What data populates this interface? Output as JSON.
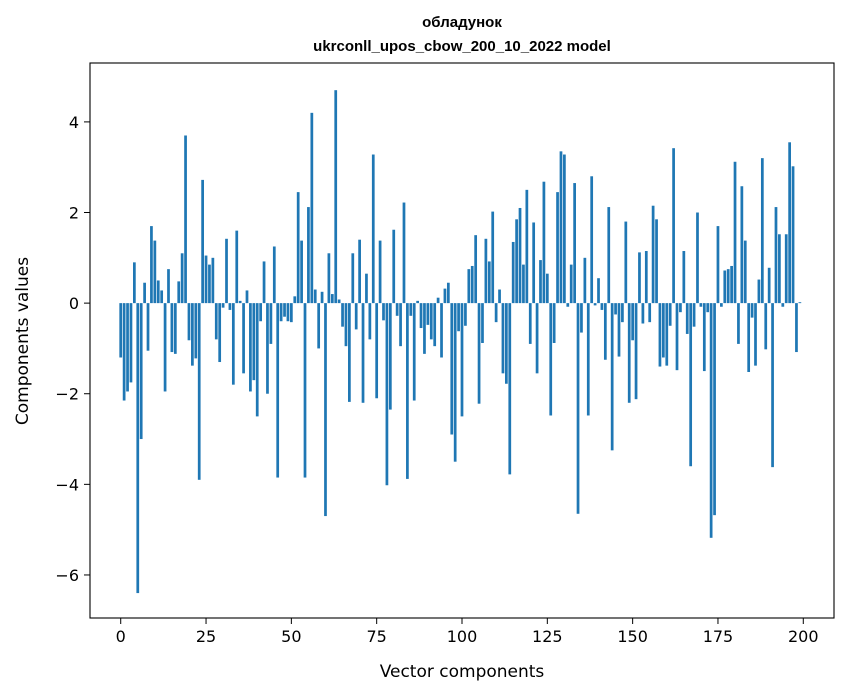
{
  "chart_data": {
    "type": "bar",
    "title": "обладунок",
    "subtitle": "ukrconll_upos_cbow_200_10_2022 model",
    "xlabel": "Vector components",
    "ylabel": "Components values",
    "xlim": [
      -9,
      209
    ],
    "ylim": [
      -6.95,
      5.3
    ],
    "xticks": [
      0,
      25,
      50,
      75,
      100,
      125,
      150,
      175,
      200
    ],
    "xtick_labels": [
      "0",
      "25",
      "50",
      "75",
      "100",
      "125",
      "150",
      "175",
      "200"
    ],
    "yticks": [
      -6,
      -4,
      -2,
      0,
      2,
      4
    ],
    "ytick_labels": [
      "−6",
      "−4",
      "−2",
      "0",
      "2",
      "4"
    ],
    "bar_color": "#1f77b4",
    "grid": false,
    "x": [
      0,
      1,
      2,
      3,
      4,
      5,
      6,
      7,
      8,
      9,
      10,
      11,
      12,
      13,
      14,
      15,
      16,
      17,
      18,
      19,
      20,
      21,
      22,
      23,
      24,
      25,
      26,
      27,
      28,
      29,
      30,
      31,
      32,
      33,
      34,
      35,
      36,
      37,
      38,
      39,
      40,
      41,
      42,
      43,
      44,
      45,
      46,
      47,
      48,
      49,
      50,
      51,
      52,
      53,
      54,
      55,
      56,
      57,
      58,
      59,
      60,
      61,
      62,
      63,
      64,
      65,
      66,
      67,
      68,
      69,
      70,
      71,
      72,
      73,
      74,
      75,
      76,
      77,
      78,
      79,
      80,
      81,
      82,
      83,
      84,
      85,
      86,
      87,
      88,
      89,
      90,
      91,
      92,
      93,
      94,
      95,
      96,
      97,
      98,
      99,
      100,
      101,
      102,
      103,
      104,
      105,
      106,
      107,
      108,
      109,
      110,
      111,
      112,
      113,
      114,
      115,
      116,
      117,
      118,
      119,
      120,
      121,
      122,
      123,
      124,
      125,
      126,
      127,
      128,
      129,
      130,
      131,
      132,
      133,
      134,
      135,
      136,
      137,
      138,
      139,
      140,
      141,
      142,
      143,
      144,
      145,
      146,
      147,
      148,
      149,
      150,
      151,
      152,
      153,
      154,
      155,
      156,
      157,
      158,
      159,
      160,
      161,
      162,
      163,
      164,
      165,
      166,
      167,
      168,
      169,
      170,
      171,
      172,
      173,
      174,
      175,
      176,
      177,
      178,
      179,
      180,
      181,
      182,
      183,
      184,
      185,
      186,
      187,
      188,
      189,
      190,
      191,
      192,
      193,
      194,
      195,
      196,
      197,
      198,
      199
    ],
    "values": [
      -1.2,
      -2.15,
      -1.95,
      -1.75,
      0.9,
      -6.4,
      -3.0,
      0.45,
      -1.05,
      1.7,
      1.38,
      0.5,
      0.28,
      -1.95,
      0.75,
      -1.08,
      -1.12,
      0.48,
      1.1,
      3.7,
      -0.82,
      -1.38,
      -1.22,
      -3.9,
      2.72,
      1.05,
      0.85,
      1.0,
      -0.8,
      -1.3,
      -0.1,
      1.42,
      -0.15,
      -1.8,
      1.6,
      0.05,
      -1.55,
      0.28,
      -1.95,
      -1.7,
      -2.5,
      -0.4,
      0.92,
      -2.0,
      -0.9,
      1.25,
      -3.85,
      -0.4,
      -0.3,
      -0.4,
      -0.42,
      0.15,
      2.45,
      1.38,
      -3.85,
      2.12,
      4.2,
      0.3,
      -1.0,
      0.25,
      -4.7,
      1.1,
      0.2,
      4.7,
      0.08,
      -0.52,
      -0.95,
      -2.18,
      1.1,
      -0.58,
      1.4,
      -2.2,
      0.65,
      -0.8,
      3.28,
      -2.1,
      1.38,
      -0.38,
      -4.02,
      -2.35,
      1.62,
      -0.28,
      -0.95,
      2.22,
      -3.88,
      -0.28,
      -2.15,
      0.05,
      -0.55,
      -1.12,
      -0.48,
      -0.8,
      -0.95,
      0.12,
      -1.2,
      0.32,
      0.45,
      -2.9,
      -3.5,
      -0.62,
      -2.5,
      -0.5,
      0.75,
      0.82,
      1.5,
      -2.22,
      -0.88,
      1.42,
      0.92,
      2.02,
      -0.42,
      0.3,
      -1.55,
      -1.78,
      -3.78,
      1.35,
      1.85,
      2.1,
      0.85,
      2.5,
      -0.9,
      1.78,
      -1.55,
      0.95,
      2.68,
      0.65,
      -2.48,
      -0.88,
      2.45,
      3.35,
      3.28,
      -0.08,
      0.85,
      2.65,
      -4.65,
      -0.65,
      1.0,
      -2.48,
      2.8,
      -0.05,
      0.55,
      -0.15,
      -1.25,
      2.12,
      -3.25,
      -0.25,
      -1.18,
      -0.42,
      1.8,
      -2.2,
      -0.82,
      -2.12,
      1.12,
      -0.45,
      1.15,
      -0.42,
      2.15,
      1.85,
      -1.4,
      -1.2,
      -1.38,
      -0.5,
      3.42,
      -1.48,
      -0.2,
      1.15,
      -0.68,
      -3.6,
      -0.52,
      2.0,
      -0.08,
      -1.5,
      -0.2,
      -5.18,
      -4.68,
      1.7,
      -0.08,
      0.72,
      0.75,
      0.82,
      3.12,
      -0.9,
      2.58,
      1.38,
      -1.52,
      -0.32,
      -1.38,
      0.52,
      3.2,
      -1.02,
      0.78,
      -3.62,
      2.12,
      1.52,
      -0.08,
      1.52,
      3.55,
      3.02,
      -1.08,
      0.02
    ]
  }
}
